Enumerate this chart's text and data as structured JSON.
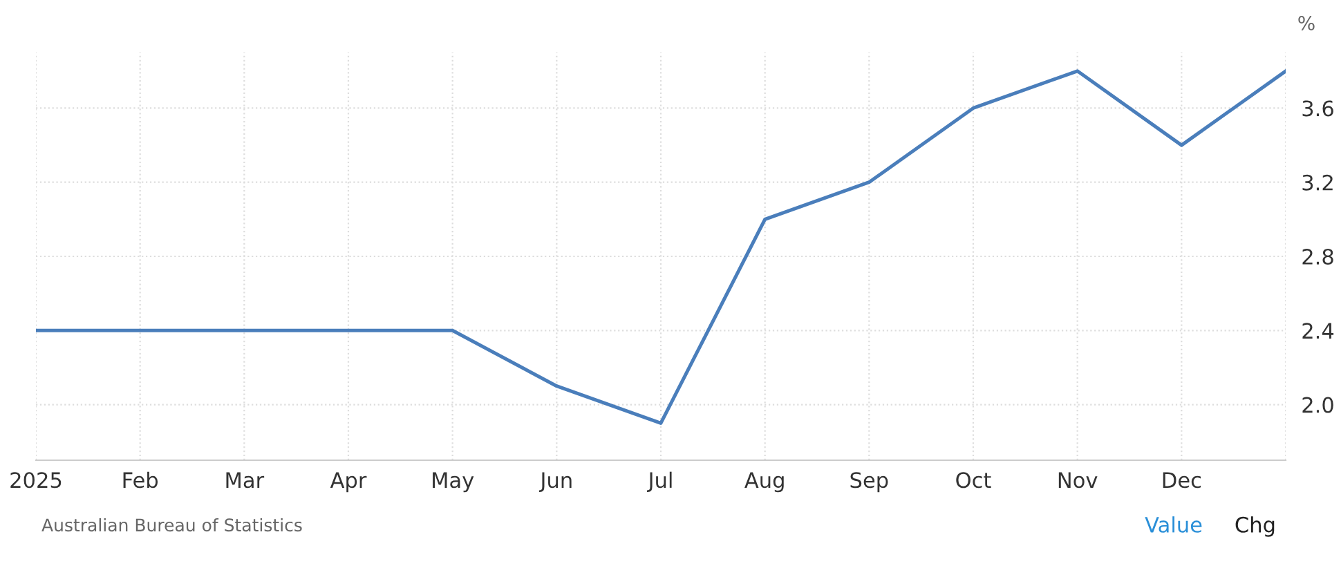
{
  "chart_data": {
    "type": "line",
    "ylabel": "%",
    "categories": [
      "2025",
      "Feb",
      "Mar",
      "Apr",
      "May",
      "Jun",
      "Jul",
      "Aug",
      "Sep",
      "Oct",
      "Nov",
      "Dec",
      null
    ],
    "series": [
      {
        "color": "#4a7ebb",
        "values": [
          2.4,
          2.4,
          2.4,
          2.4,
          2.4,
          2.1,
          1.9,
          3.0,
          3.2,
          3.6,
          3.8,
          3.4,
          3.8
        ]
      }
    ],
    "ylim": [
      1.7,
      3.9
    ],
    "yticks": [
      {
        "value": 2.0,
        "label": "2.0"
      },
      {
        "value": 2.4,
        "label": "2.4"
      },
      {
        "value": 2.8,
        "label": "2.8"
      },
      {
        "value": 3.2,
        "label": "3.2"
      },
      {
        "value": 3.6,
        "label": "3.6"
      }
    ],
    "grid": true,
    "marker": "none",
    "line_style": "solid",
    "annotations": [
      "Australian Bureau of Statistics",
      "Value",
      "Chg"
    ]
  }
}
